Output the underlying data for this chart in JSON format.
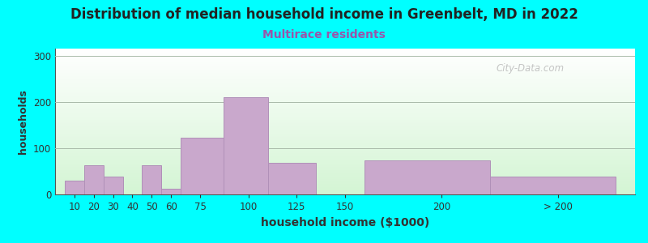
{
  "title": "Distribution of median household income in Greenbelt, MD in 2022",
  "subtitle": "Multirace residents",
  "xlabel": "household income ($1000)",
  "ylabel": "households",
  "background_outer": "#00FFFF",
  "bar_color": "#C9A8CC",
  "bar_edge_color": "#B090B8",
  "title_fontsize": 12,
  "subtitle_fontsize": 10,
  "subtitle_color": "#9955AA",
  "xlabel_fontsize": 10,
  "ylabel_fontsize": 9,
  "watermark": "City-Data.com",
  "values": [
    30,
    63,
    38,
    0,
    63,
    13,
    122,
    210,
    68,
    0,
    73,
    38
  ],
  "bar_lefts": [
    5,
    15,
    25,
    35,
    45,
    55,
    65,
    87,
    110,
    135,
    160,
    225
  ],
  "bar_widths": [
    10,
    10,
    10,
    10,
    10,
    10,
    22,
    23,
    25,
    25,
    65,
    65
  ],
  "yticks": [
    0,
    100,
    200,
    300
  ],
  "ylim": [
    0,
    315
  ],
  "xlim": [
    0,
    300
  ],
  "xtick_labels": [
    "10",
    "20",
    "30",
    "40",
    "50",
    "60",
    "75",
    "100",
    "125",
    "150",
    "200",
    "> 200"
  ],
  "xtick_positions": [
    10,
    20,
    30,
    40,
    50,
    60,
    75,
    100,
    125,
    150,
    200,
    260
  ]
}
